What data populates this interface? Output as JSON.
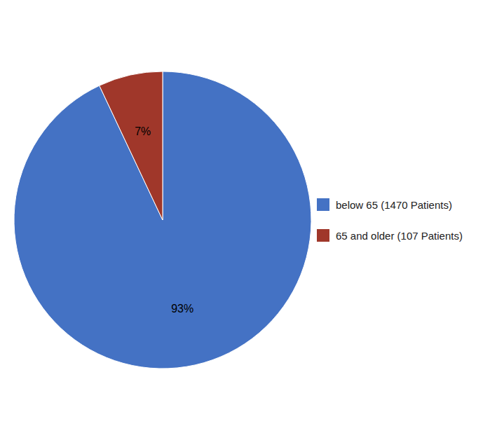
{
  "chart_data": {
    "type": "pie",
    "categories": [
      "below 65 (1470 Patients)",
      "65 and older (107 Patients)"
    ],
    "values": [
      93,
      7
    ],
    "value_labels": [
      "93%",
      "7%"
    ],
    "colors": [
      "#4472C4",
      "#A0372A"
    ],
    "data_labels": true,
    "legend": "right"
  }
}
